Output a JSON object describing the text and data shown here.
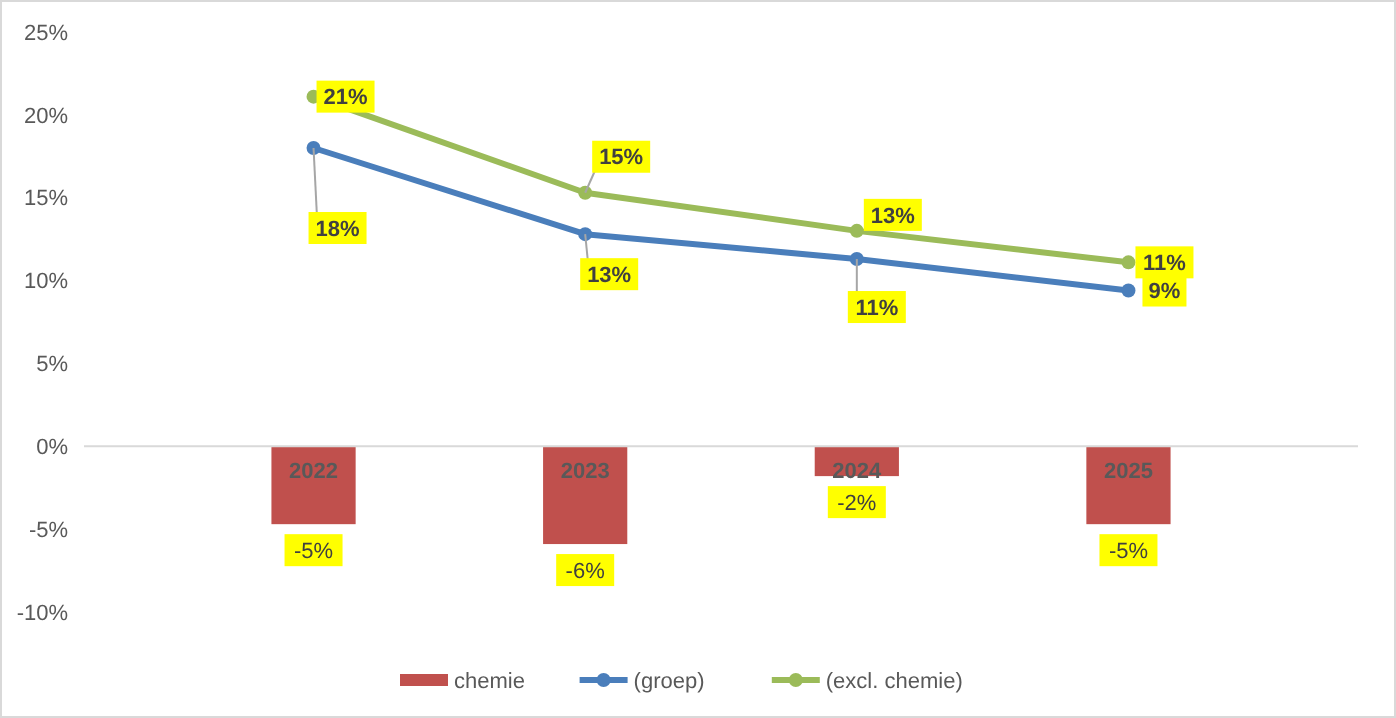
{
  "chart_data": {
    "type": "bar",
    "categories": [
      "2022",
      "2023",
      "2024",
      "2025"
    ],
    "series": [
      {
        "name": "chemie",
        "color": "#c0504d",
        "values": [
          -4.7,
          -5.9,
          -1.8,
          -4.7
        ],
        "value_labels": [
          "-5%",
          "-6%",
          "-2%",
          "-5%"
        ]
      },
      {
        "name": "(groep)",
        "type": "line",
        "color": "#4a7ebb",
        "values": [
          18.0,
          12.8,
          11.3,
          9.4
        ],
        "value_labels": [
          "18%",
          "13%",
          "11%",
          "9%"
        ]
      },
      {
        "name": "(excl. chemie)",
        "type": "line",
        "color": "#9bbb59",
        "values": [
          21.1,
          15.3,
          13.0,
          11.1
        ],
        "value_labels": [
          "21%",
          "15%",
          "13%",
          "11%"
        ]
      }
    ],
    "ylim": [
      -10,
      25
    ],
    "yticks": [
      {
        "value": -10,
        "label": "-10%"
      },
      {
        "value": -5,
        "label": "-5%"
      },
      {
        "value": 0,
        "label": "0%"
      },
      {
        "value": 5,
        "label": "5%"
      },
      {
        "value": 10,
        "label": "10%"
      },
      {
        "value": 15,
        "label": "15%"
      },
      {
        "value": 20,
        "label": "20%"
      },
      {
        "value": 25,
        "label": "25%"
      }
    ],
    "grid": false,
    "legend": "bottom",
    "marker": "circle",
    "line_style": "solid"
  }
}
